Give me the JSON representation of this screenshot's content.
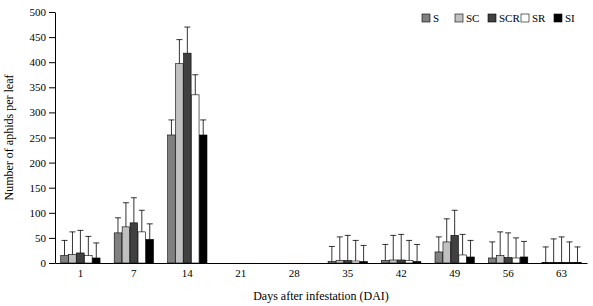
{
  "chart_data": {
    "type": "bar",
    "x_label": "Days after infestation (DAI)",
    "y_label": "Number of aphids per leaf",
    "categories": [
      "1",
      "7",
      "14",
      "21",
      "28",
      "35",
      "42",
      "49",
      "56",
      "63"
    ],
    "series": [
      {
        "name": "S",
        "color": "#808080",
        "values": [
          15,
          60,
          255,
          0,
          0,
          3,
          5,
          22,
          10,
          1
        ],
        "errors": [
          30,
          30,
          30,
          null,
          null,
          30,
          32,
          30,
          32,
          31
        ]
      },
      {
        "name": "SC",
        "color": "#c0c0c0",
        "values": [
          17,
          72,
          397,
          0,
          0,
          5,
          6,
          42,
          15,
          1
        ],
        "errors": [
          45,
          48,
          48,
          null,
          null,
          47,
          49,
          46,
          47,
          47
        ]
      },
      {
        "name": "SCR",
        "color": "#404040",
        "values": [
          20,
          80,
          418,
          0,
          0,
          5,
          6,
          55,
          11,
          1
        ],
        "errors": [
          45,
          50,
          52,
          null,
          null,
          50,
          51,
          50,
          49,
          51
        ]
      },
      {
        "name": "SR",
        "color": "#ffffff",
        "values": [
          15,
          62,
          335,
          0,
          0,
          4,
          5,
          16,
          10,
          1
        ],
        "errors": [
          38,
          43,
          40,
          null,
          null,
          41,
          40,
          41,
          40,
          41
        ]
      },
      {
        "name": "SI",
        "color": "#000000",
        "values": [
          10,
          47,
          255,
          0,
          0,
          3,
          3,
          12,
          12,
          1
        ],
        "errors": [
          30,
          31,
          30,
          null,
          null,
          32,
          34,
          33,
          31,
          31
        ]
      }
    ],
    "ylim": [
      0,
      500
    ],
    "yticks": [
      0,
      50,
      100,
      150,
      200,
      250,
      300,
      350,
      400,
      450,
      500
    ],
    "legend": "top-right",
    "grid": false
  }
}
